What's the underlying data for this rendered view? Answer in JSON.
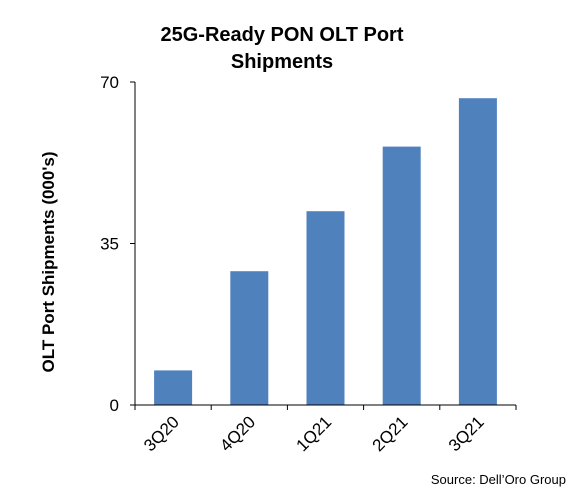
{
  "chart_data": {
    "type": "bar",
    "title_lines": [
      "25G-Ready PON OLT Port",
      "Shipments"
    ],
    "ylabel": "OLT Port Shipments (000's)",
    "xlabel": "",
    "categories": [
      "3Q20",
      "4Q20",
      "1Q21",
      "2Q21",
      "3Q21"
    ],
    "values": [
      7.5,
      29,
      42,
      56,
      66.5
    ],
    "ylim": [
      0,
      70
    ],
    "yticks": [
      0,
      35,
      70
    ],
    "grid": false,
    "bar_color": "#4f81bd",
    "source": "Source: Dell’Oro Group"
  }
}
